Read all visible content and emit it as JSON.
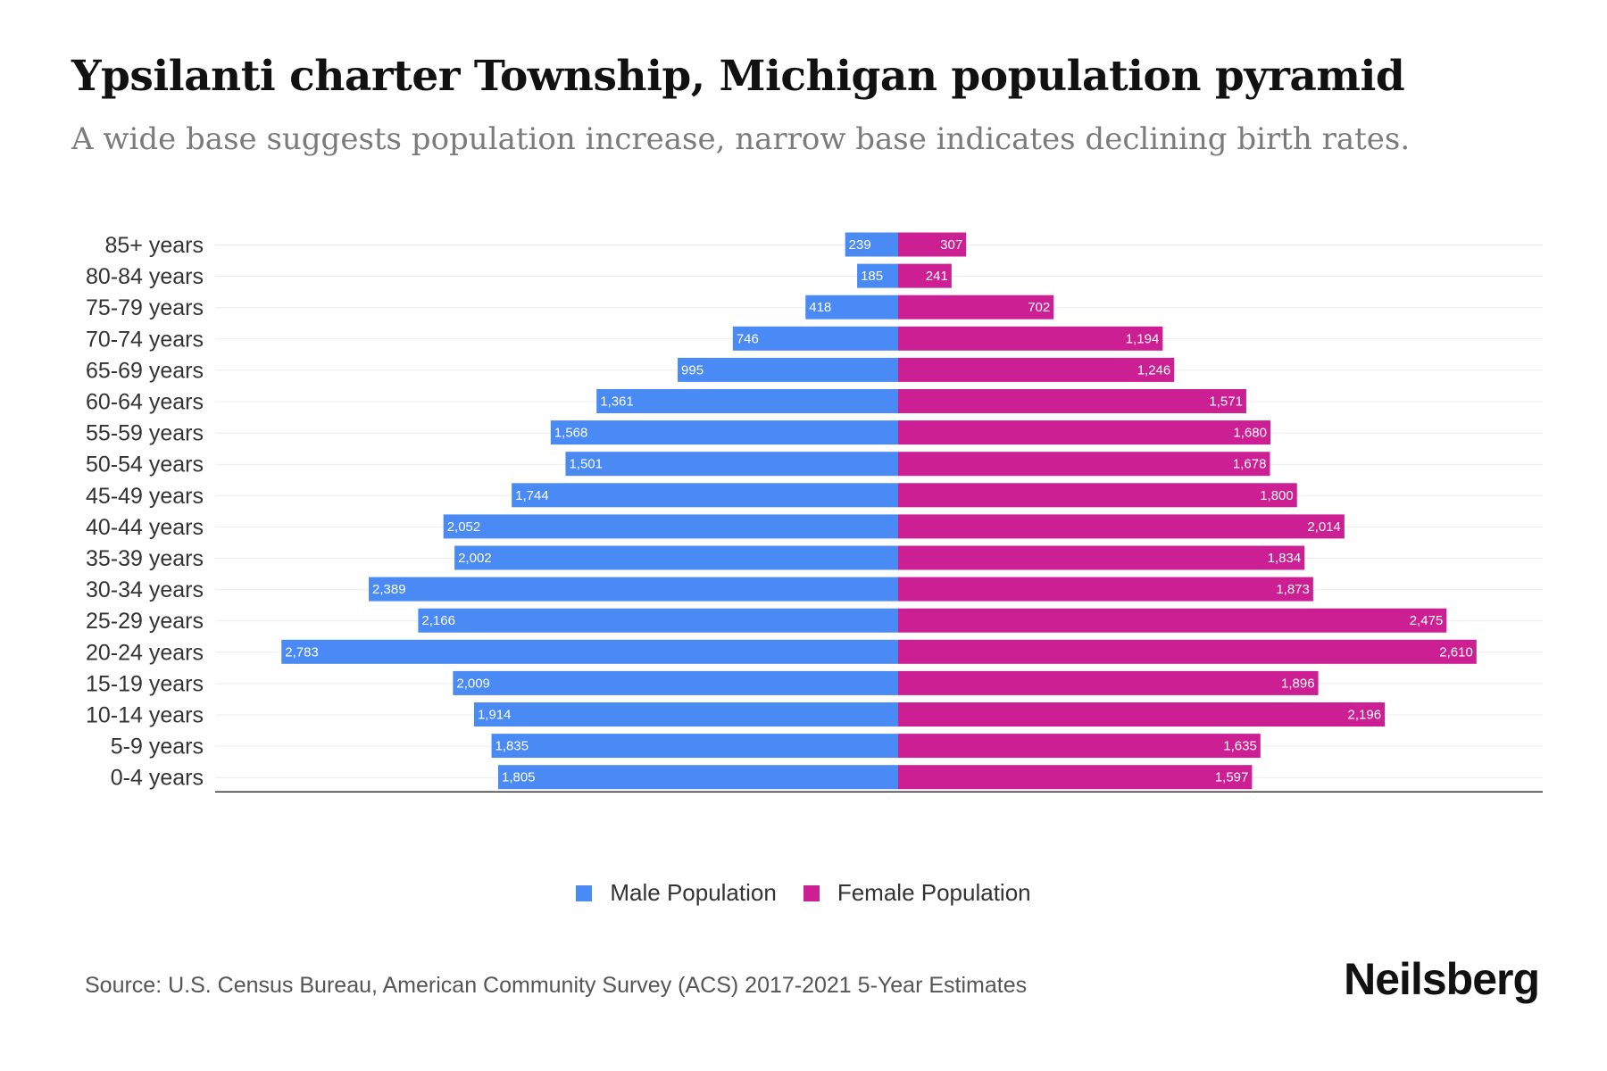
{
  "colors": {
    "male": "#4a8af4",
    "female": "#cb1f93"
  },
  "brand": "Neilsberg",
  "source": "Source: U.S. Census Bureau, American Community Survey (ACS) 2017-2021 5-Year Estimates",
  "chart_data": {
    "type": "bar",
    "orientation": "horizontal-pyramid",
    "title": "Ypsilanti charter Township, Michigan population pyramid",
    "subtitle": "A wide base suggests population increase, narrow base indicates declining birth rates.",
    "categories": [
      "85+ years",
      "80-84 years",
      "75-79 years",
      "70-74 years",
      "65-69 years",
      "60-64 years",
      "55-59 years",
      "50-54 years",
      "45-49 years",
      "40-44 years",
      "35-39 years",
      "30-34 years",
      "25-29 years",
      "20-24 years",
      "15-19 years",
      "10-14 years",
      "5-9 years",
      "0-4 years"
    ],
    "series": [
      {
        "name": "Male Population",
        "values": [
          239,
          185,
          418,
          746,
          995,
          1361,
          1568,
          1501,
          1744,
          2052,
          2002,
          2389,
          2166,
          2783,
          2009,
          1914,
          1835,
          1805
        ]
      },
      {
        "name": "Female Population",
        "values": [
          307,
          241,
          702,
          1194,
          1246,
          1571,
          1680,
          1678,
          1800,
          2014,
          1834,
          1873,
          2475,
          2610,
          1896,
          2196,
          1635,
          1597
        ]
      }
    ],
    "legend_position": "bottom-center",
    "grid": true
  }
}
